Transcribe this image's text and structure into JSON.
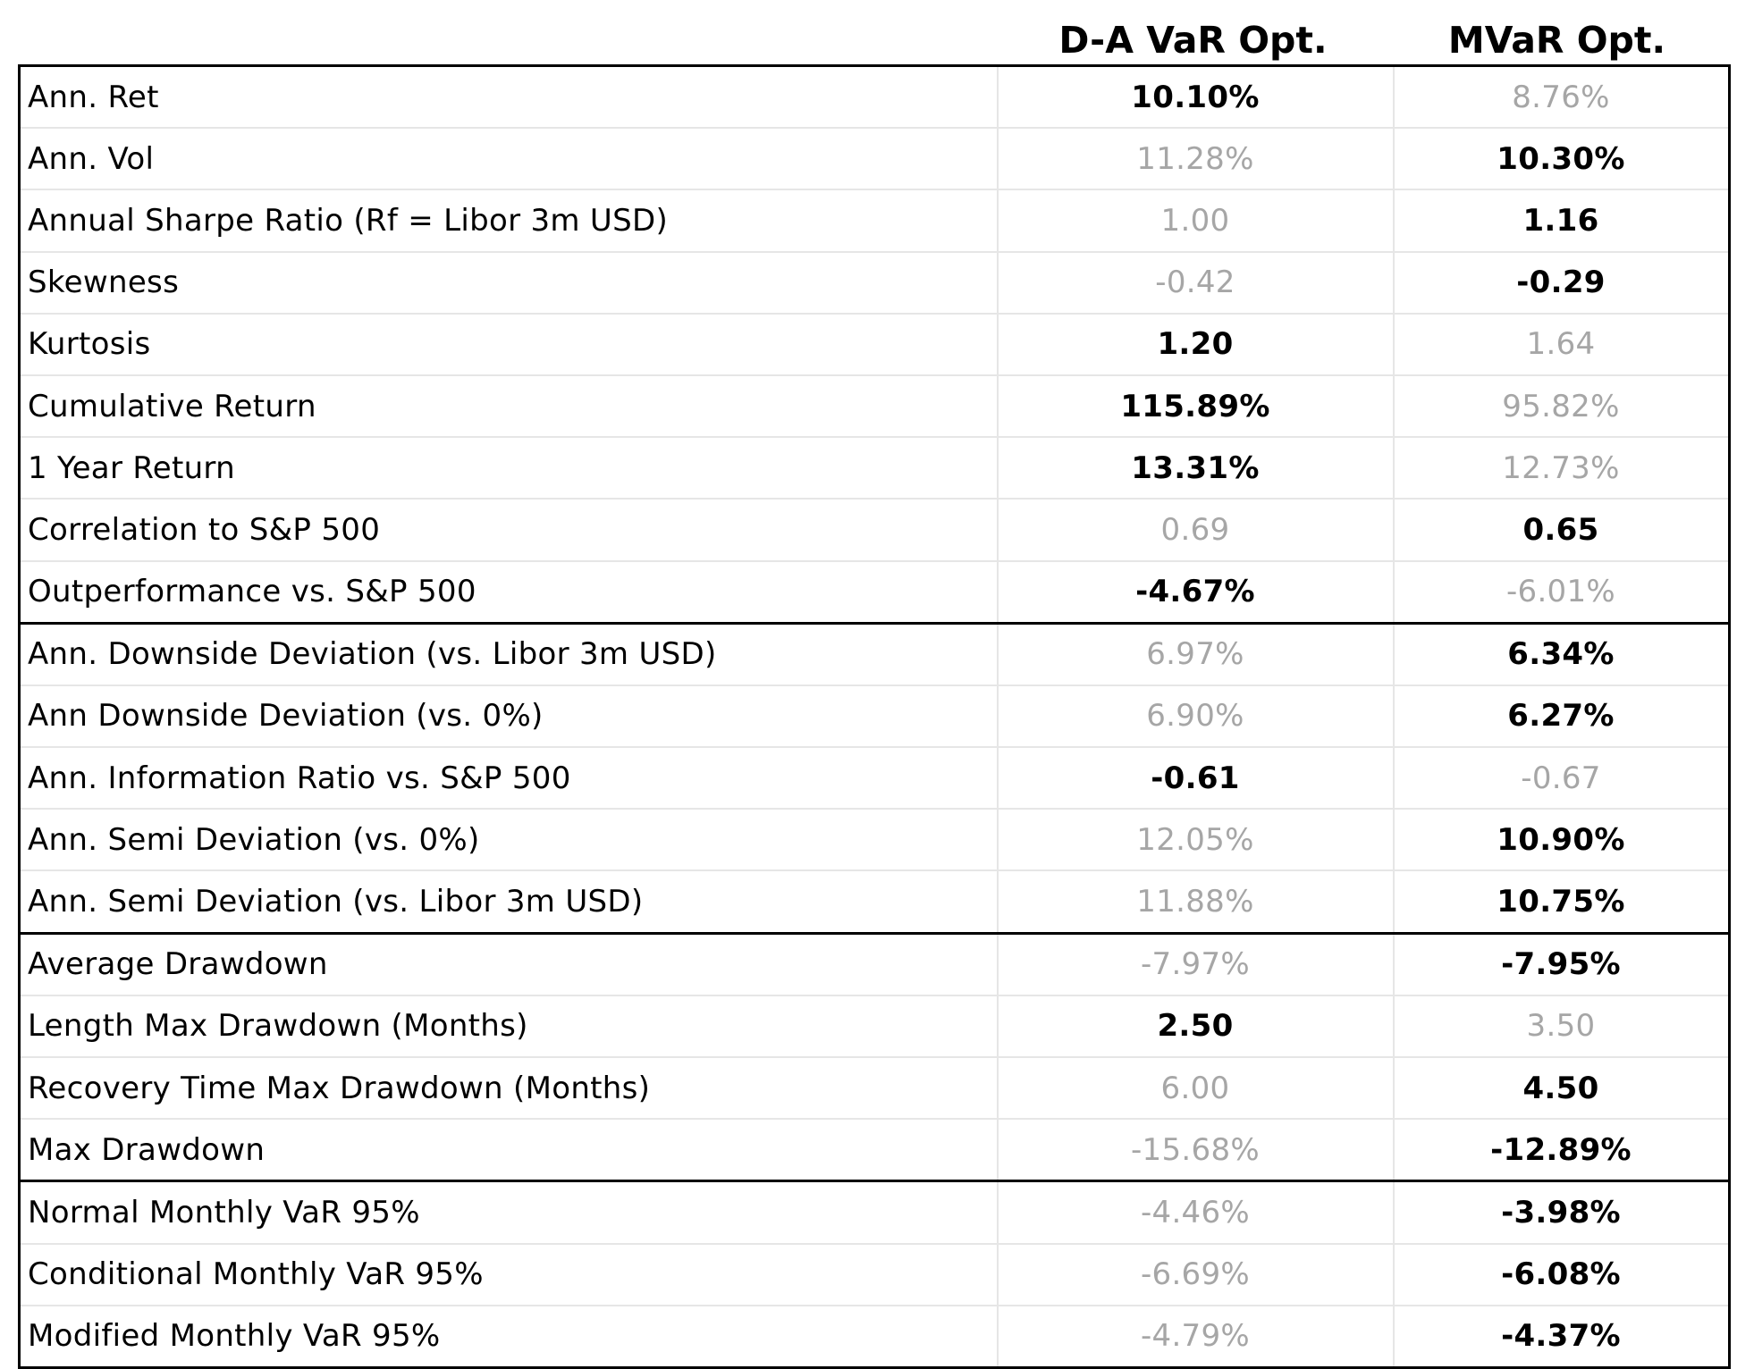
{
  "table": {
    "columns": [
      "D-A VaR Opt.",
      "MVaR Opt."
    ],
    "rows": [
      {
        "label": "Ann. Ret",
        "values": [
          "10.10%",
          "8.76%"
        ],
        "best": 0,
        "section_end": false
      },
      {
        "label": "Ann. Vol",
        "values": [
          "11.28%",
          "10.30%"
        ],
        "best": 1,
        "section_end": false
      },
      {
        "label": "Annual Sharpe Ratio (Rf = Libor 3m USD)",
        "values": [
          "1.00",
          "1.16"
        ],
        "best": 1,
        "section_end": false
      },
      {
        "label": "Skewness",
        "values": [
          "-0.42",
          "-0.29"
        ],
        "best": 1,
        "section_end": false
      },
      {
        "label": "Kurtosis",
        "values": [
          "1.20",
          "1.64"
        ],
        "best": 0,
        "section_end": false
      },
      {
        "label": "Cumulative Return",
        "values": [
          "115.89%",
          "95.82%"
        ],
        "best": 0,
        "section_end": false
      },
      {
        "label": "1 Year Return",
        "values": [
          "13.31%",
          "12.73%"
        ],
        "best": 0,
        "section_end": false
      },
      {
        "label": "Correlation to S&P 500",
        "values": [
          "0.69",
          "0.65"
        ],
        "best": 1,
        "section_end": false
      },
      {
        "label": "Outperformance vs. S&P 500",
        "values": [
          "-4.67%",
          "-6.01%"
        ],
        "best": 0,
        "section_end": true
      },
      {
        "label": "Ann. Downside Deviation (vs. Libor 3m USD)",
        "values": [
          "6.97%",
          "6.34%"
        ],
        "best": 1,
        "section_end": false
      },
      {
        "label": "Ann Downside Deviation (vs. 0%)",
        "values": [
          "6.90%",
          "6.27%"
        ],
        "best": 1,
        "section_end": false
      },
      {
        "label": "Ann. Information Ratio vs. S&P 500",
        "values": [
          "-0.61",
          "-0.67"
        ],
        "best": 0,
        "section_end": false
      },
      {
        "label": "Ann. Semi Deviation (vs. 0%)",
        "values": [
          "12.05%",
          "10.90%"
        ],
        "best": 1,
        "section_end": false
      },
      {
        "label": "Ann. Semi Deviation (vs. Libor 3m USD)",
        "values": [
          "11.88%",
          "10.75%"
        ],
        "best": 1,
        "section_end": true
      },
      {
        "label": "Average Drawdown",
        "values": [
          "-7.97%",
          "-7.95%"
        ],
        "best": 1,
        "section_end": false
      },
      {
        "label": "Length Max Drawdown (Months)",
        "values": [
          "2.50",
          "3.50"
        ],
        "best": 0,
        "section_end": false
      },
      {
        "label": "Recovery Time Max Drawdown (Months)",
        "values": [
          "6.00",
          "4.50"
        ],
        "best": 1,
        "section_end": false
      },
      {
        "label": "Max Drawdown",
        "values": [
          "-15.68%",
          "-12.89%"
        ],
        "best": 1,
        "section_end": true
      },
      {
        "label": "Normal Monthly VaR 95%",
        "values": [
          "-4.46%",
          "-3.98%"
        ],
        "best": 1,
        "section_end": false
      },
      {
        "label": "Conditional Monthly VaR 95%",
        "values": [
          "-6.69%",
          "-6.08%"
        ],
        "best": 1,
        "section_end": false
      },
      {
        "label": "Modified Monthly VaR 95%",
        "values": [
          "-4.79%",
          "-4.37%"
        ],
        "best": 1,
        "section_end": false
      }
    ]
  },
  "colors": {
    "best_text": "#000000",
    "worse_text": "#a6a6a6",
    "grid_line": "#e6e6e6",
    "border": "#000000"
  }
}
